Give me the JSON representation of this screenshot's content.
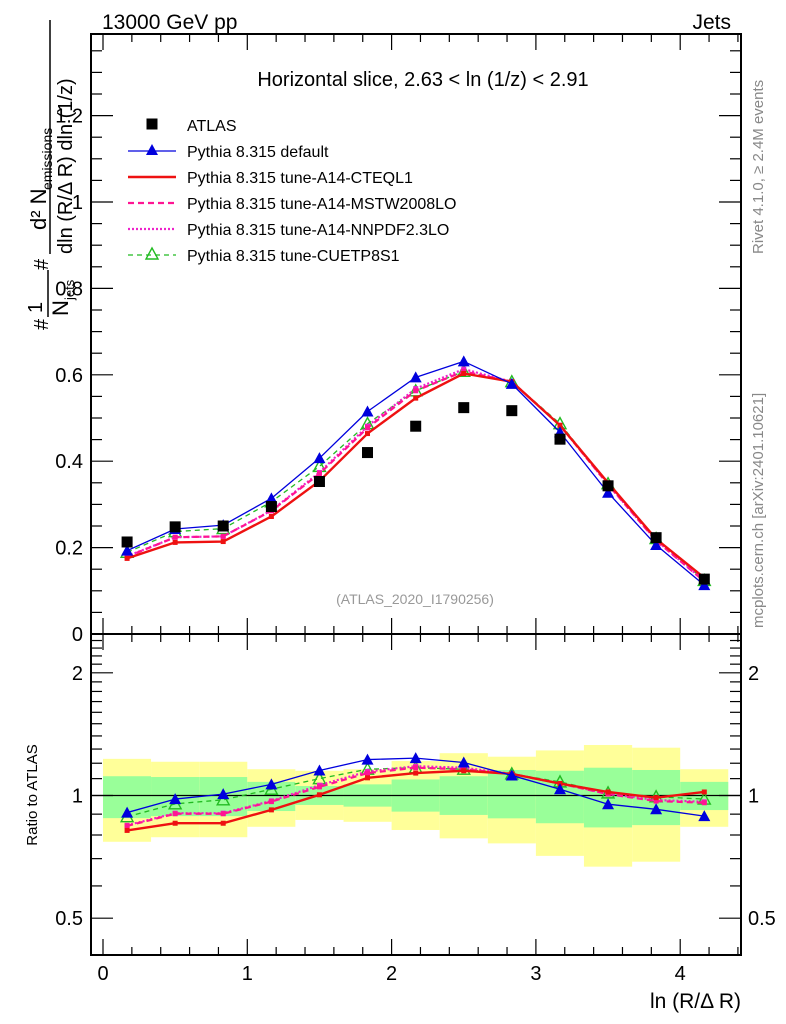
{
  "header": {
    "left_label": "13000 GeV pp",
    "right_label": "Jets"
  },
  "side_labels": {
    "rivet": "Rivet 4.1.0, ≥ 2.4M events",
    "mcplots": "mcplots.cern.ch [arXiv:2401.10621]"
  },
  "watermark": "(ATLAS_2020_I1790256)",
  "chart_data": [
    {
      "panel": "main",
      "type": "line",
      "title": "Horizontal slice, 2.63 < ln (1/z) < 2.91",
      "ylabel_parts": {
        "hash1": "#",
        "one": "1",
        "njets": "N",
        "njets_sub": "jets",
        "hash2": "#",
        "num": "d² N",
        "num_sub": "emissions",
        "den": "dln (R/Δ R) dln (1/z)"
      },
      "xlabel": "ln (R/Δ R)",
      "xlim": [
        -0.1,
        4.4
      ],
      "ylim": [
        0,
        1.38
      ],
      "yticks": [
        0,
        0.2,
        0.4,
        0.6,
        0.8,
        1,
        1.2
      ],
      "ytick_labels": [
        "0",
        "0.2",
        "0.4",
        "0.6",
        "0.8",
        "1",
        "1.2"
      ],
      "x": [
        0.167,
        0.5,
        0.833,
        1.167,
        1.5,
        1.833,
        2.167,
        2.5,
        2.833,
        3.167,
        3.5,
        3.833,
        4.167
      ],
      "legend_position": "top-left",
      "series": [
        {
          "name": "ATLAS",
          "style": "data",
          "color": "#000000",
          "marker": "square",
          "values": [
            0.213,
            0.248,
            0.25,
            0.295,
            0.353,
            0.42,
            0.481,
            0.524,
            0.517,
            0.451,
            0.343,
            0.223,
            0.127
          ]
        },
        {
          "name": "Pythia 8.315 default",
          "style": "solid",
          "color": "#0000dd",
          "marker": "triangle-filled",
          "values": [
            0.193,
            0.243,
            0.252,
            0.314,
            0.407,
            0.515,
            0.594,
            0.631,
            0.579,
            0.467,
            0.327,
            0.206,
            0.113
          ]
        },
        {
          "name": "Pythia 8.315 tune-A14-CTEQL1",
          "style": "solid-thick",
          "color": "#ee1111",
          "marker": "small-square",
          "values": [
            0.175,
            0.212,
            0.214,
            0.272,
            0.354,
            0.464,
            0.546,
            0.603,
            0.584,
            0.483,
            0.35,
            0.22,
            0.13
          ]
        },
        {
          "name": "Pythia 8.315 tune-A14-MSTW2008LO",
          "style": "dashed",
          "color": "#ff1493",
          "marker": "small-square",
          "values": [
            0.179,
            0.224,
            0.226,
            0.285,
            0.371,
            0.477,
            0.563,
            0.608,
            0.584,
            0.483,
            0.346,
            0.216,
            0.122
          ]
        },
        {
          "name": "Pythia 8.315 tune-A14-NNPDF2.3LO",
          "style": "dotted",
          "color": "#ee22cc",
          "marker": "small-square",
          "values": [
            0.18,
            0.224,
            0.226,
            0.286,
            0.374,
            0.481,
            0.568,
            0.613,
            0.584,
            0.483,
            0.346,
            0.217,
            0.123
          ]
        },
        {
          "name": "Pythia 8.315 tune-CUETP8S1",
          "style": "dashed-thin",
          "color": "#22bb22",
          "marker": "triangle-open",
          "values": [
            0.189,
            0.237,
            0.244,
            0.306,
            0.388,
            0.487,
            0.563,
            0.608,
            0.584,
            0.487,
            0.348,
            0.221,
            0.124
          ]
        }
      ]
    },
    {
      "panel": "ratio",
      "type": "line",
      "ylabel": "Ratio to ATLAS",
      "xlabel": "ln (R/Δ R)",
      "yscale": "log",
      "ylim": [
        0.4,
        2.5
      ],
      "yticks": [
        0.5,
        1,
        2
      ],
      "ytick_labels": [
        "0.5",
        "1",
        "2"
      ],
      "xticks": [
        0,
        1,
        2,
        3,
        4
      ],
      "xtick_labels": [
        "0",
        "1",
        "2",
        "3",
        "4"
      ],
      "bin_edges": [
        0,
        0.333,
        0.667,
        1.0,
        1.333,
        1.667,
        2.0,
        2.333,
        2.667,
        3.0,
        3.333,
        3.667,
        4.0,
        4.333
      ],
      "band_1sigma": {
        "color": "#99ff99",
        "lo": [
          0.88,
          0.89,
          0.89,
          0.916,
          0.948,
          0.939,
          0.913,
          0.896,
          0.879,
          0.855,
          0.835,
          0.846,
          0.921
        ],
        "hi": [
          1.115,
          1.11,
          1.11,
          1.08,
          1.055,
          1.065,
          1.095,
          1.115,
          1.155,
          1.15,
          1.17,
          1.155,
          1.08
        ]
      },
      "band_2sigma": {
        "color": "#ffff99",
        "lo": [
          0.77,
          0.79,
          0.79,
          0.838,
          0.871,
          0.862,
          0.823,
          0.785,
          0.763,
          0.711,
          0.669,
          0.688,
          0.838
        ],
        "hi": [
          1.23,
          1.21,
          1.21,
          1.16,
          1.15,
          1.16,
          1.215,
          1.27,
          1.245,
          1.29,
          1.33,
          1.31,
          1.16
        ]
      },
      "series": [
        {
          "name": "Pythia 8.315 default",
          "values": [
            0.908,
            0.98,
            1.008,
            1.065,
            1.152,
            1.225,
            1.235,
            1.205,
            1.12,
            1.036,
            0.952,
            0.925,
            0.89
          ]
        },
        {
          "name": "Pythia 8.315 tune-A14-CTEQL1",
          "values": [
            0.821,
            0.855,
            0.855,
            0.922,
            1.004,
            1.105,
            1.135,
            1.15,
            1.13,
            1.07,
            1.02,
            0.988,
            1.02
          ]
        },
        {
          "name": "Pythia 8.315 tune-A14-MSTW2008LO",
          "values": [
            0.842,
            0.902,
            0.902,
            0.966,
            1.05,
            1.135,
            1.17,
            1.16,
            1.13,
            1.07,
            1.008,
            0.969,
            0.96
          ]
        },
        {
          "name": "Pythia 8.315 tune-A14-NNPDF2.3LO",
          "values": [
            0.845,
            0.905,
            0.905,
            0.97,
            1.06,
            1.145,
            1.18,
            1.17,
            1.13,
            1.07,
            1.01,
            0.975,
            0.965
          ]
        },
        {
          "name": "Pythia 8.315 tune-CUETP8S1",
          "values": [
            0.887,
            0.954,
            0.976,
            1.036,
            1.1,
            1.16,
            1.17,
            1.16,
            1.13,
            1.08,
            1.015,
            0.993,
            0.98
          ]
        }
      ]
    }
  ]
}
